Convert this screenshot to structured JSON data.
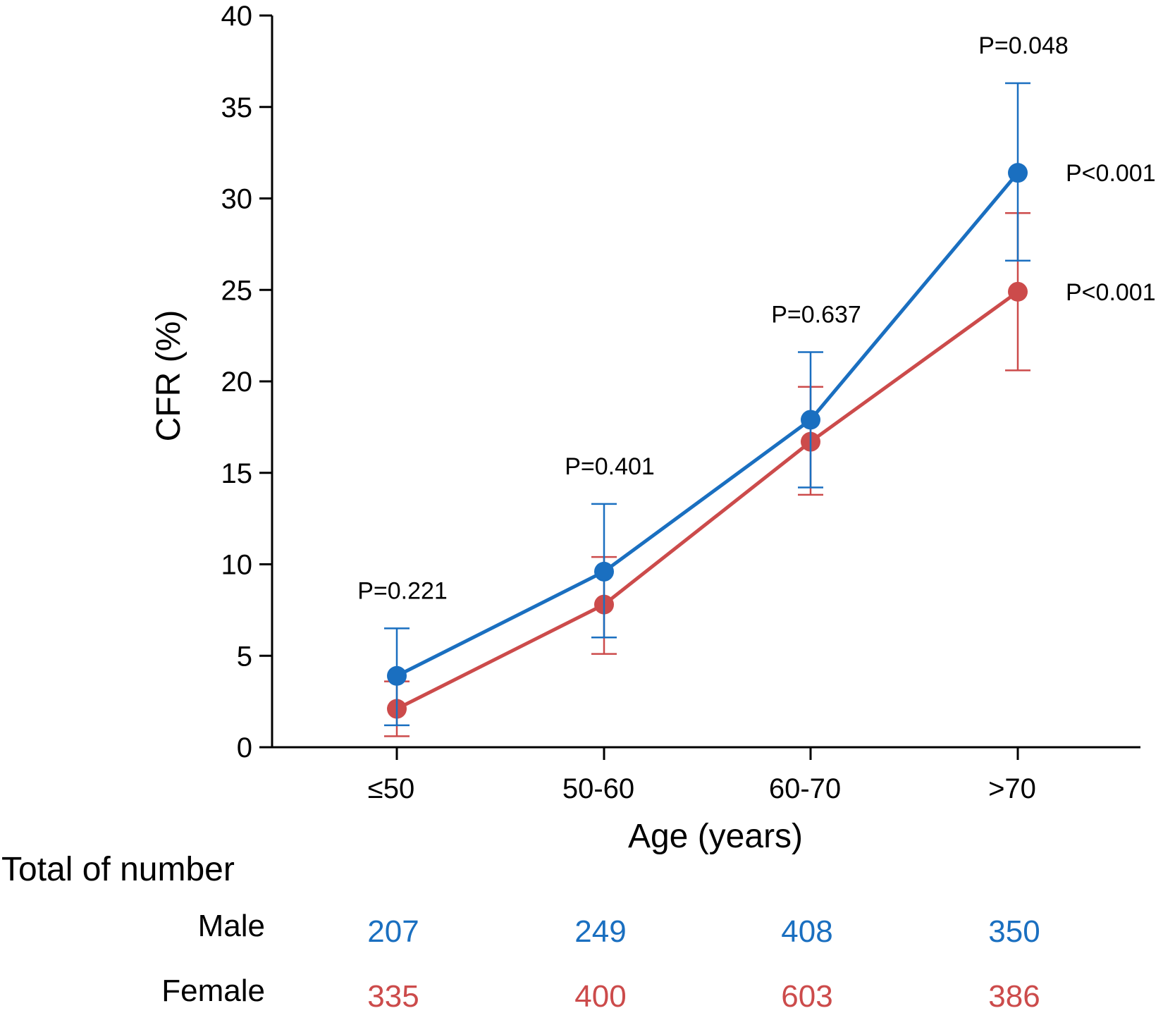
{
  "chart_data": {
    "type": "line",
    "title": "",
    "xlabel": "Age (years)",
    "ylabel": "CFR (%)",
    "ylim": [
      0,
      40
    ],
    "yticks": [
      0,
      5,
      10,
      15,
      20,
      25,
      30,
      35,
      40
    ],
    "grid": false,
    "categories": [
      "≤50",
      "50-60",
      "60-70",
      ">70"
    ],
    "series": [
      {
        "name": "Male",
        "color": "#1a6fc0",
        "values": [
          3.9,
          9.6,
          17.9,
          31.4
        ],
        "err_low": [
          1.2,
          6.0,
          14.2,
          26.6
        ],
        "err_high": [
          6.5,
          13.3,
          21.6,
          36.3
        ],
        "trend_p": "P<0.001"
      },
      {
        "name": "Female",
        "color": "#cc4b4b",
        "values": [
          2.1,
          7.8,
          16.7,
          24.9
        ],
        "err_low": [
          0.6,
          5.1,
          13.8,
          20.6
        ],
        "err_high": [
          3.6,
          10.4,
          19.7,
          29.2
        ],
        "trend_p": "P<0.001"
      }
    ],
    "comparison_p": [
      "P=0.221",
      "P=0.401",
      "P=0.637",
      "P=0.048"
    ]
  },
  "counts_table": {
    "title": "Total of number",
    "rows": [
      {
        "label": "Male",
        "color": "#1a6fc0",
        "values": [
          "207",
          "249",
          "408",
          "350"
        ]
      },
      {
        "label": "Female",
        "color": "#cc4b4b",
        "values": [
          "335",
          "400",
          "603",
          "386"
        ]
      }
    ]
  }
}
